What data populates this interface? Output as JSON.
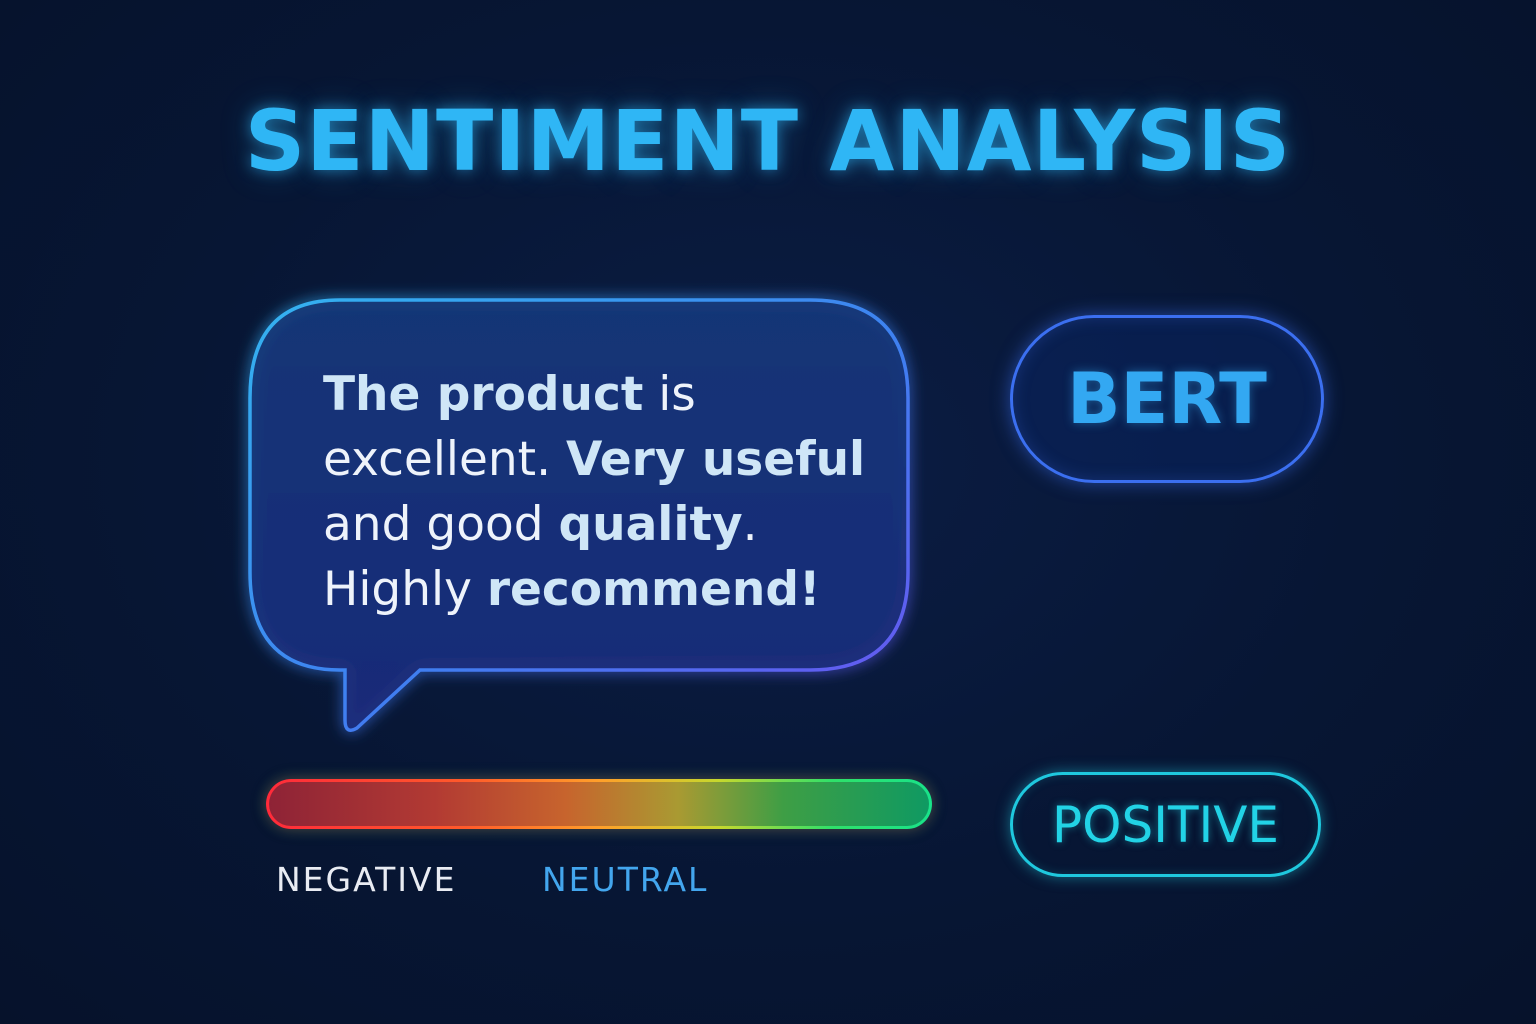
{
  "title": "SENTIMENT ANALYSIS",
  "review": {
    "segments": [
      {
        "text": "The product",
        "emphasis": true
      },
      {
        "text": " is excellent. ",
        "emphasis": false
      },
      {
        "text": "Very useful",
        "emphasis": true
      },
      {
        "text": " and good ",
        "emphasis": false
      },
      {
        "text": "quality",
        "emphasis": true
      },
      {
        "text": ". Highly ",
        "emphasis": false
      },
      {
        "text": "recommend!",
        "emphasis": true
      }
    ]
  },
  "model": {
    "label": "BERT"
  },
  "meter": {
    "labels": {
      "negative": "NEGATIVE",
      "neutral": "NEUTRAL"
    },
    "gradient_colors": [
      "#ff2a3a",
      "#ff9f2a",
      "#c6d82d",
      "#19e38a"
    ]
  },
  "result": {
    "label": "POSITIVE",
    "color": "#22d3e6"
  },
  "colors": {
    "accent": "#2fb6f5",
    "bubble_border_start": "#33b3f0",
    "bubble_border_end": "#6b52f0",
    "model_border": "#3b6ff0"
  }
}
